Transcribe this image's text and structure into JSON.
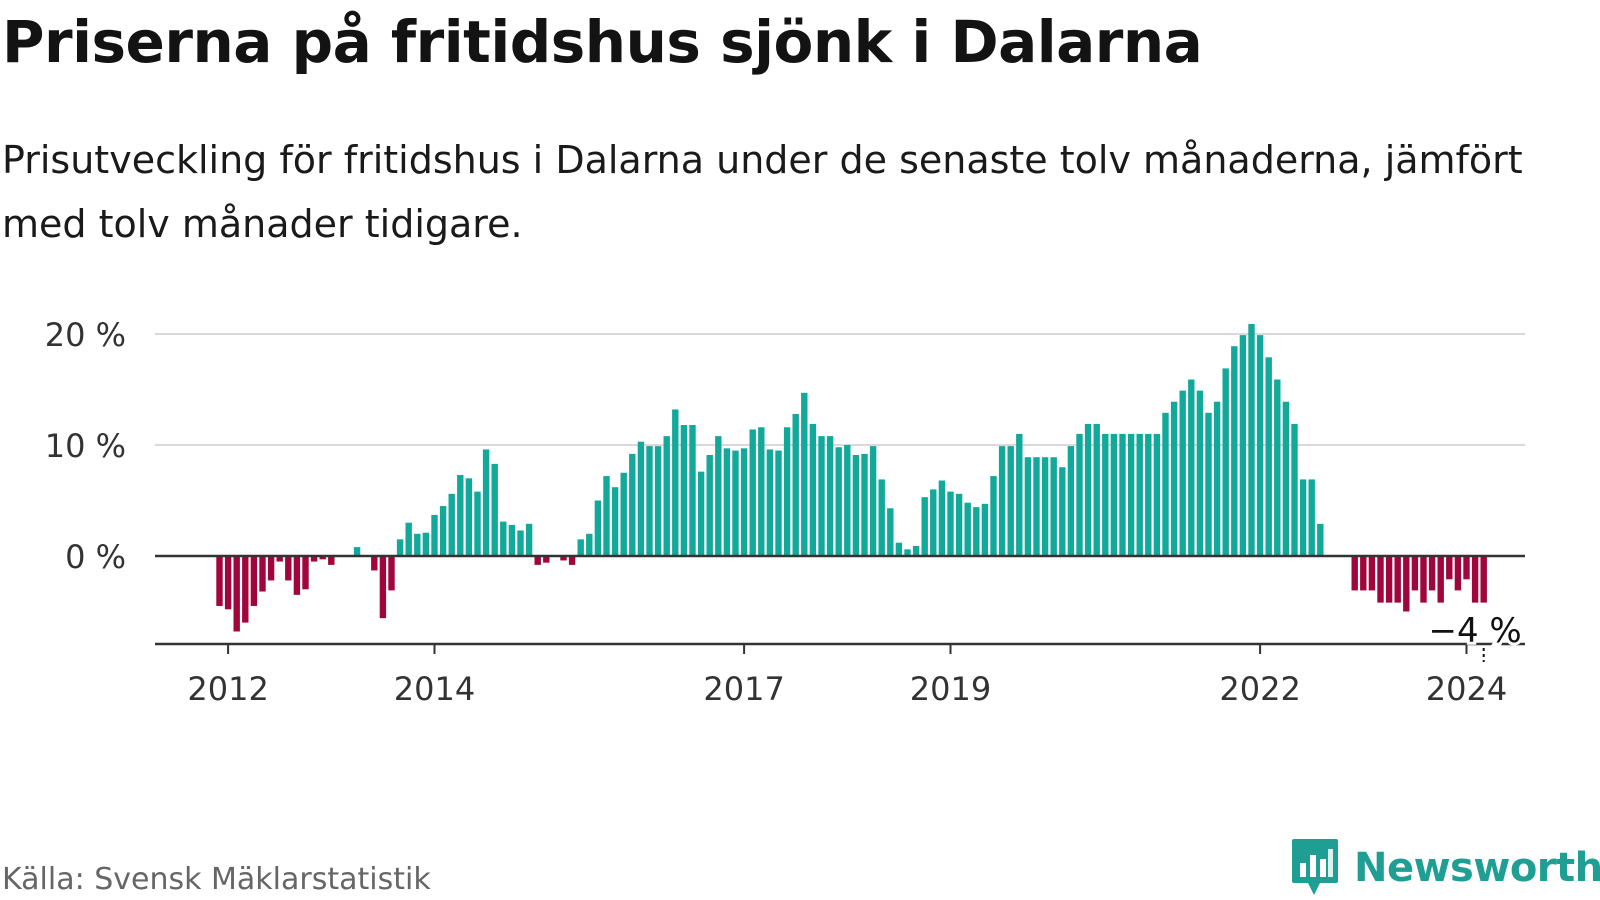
{
  "title": "Priserna på fritidshus sjönk i Dalarna",
  "subtitle": "Prisutveckling för fritidshus i Dalarna under de senaste tolv månaderna, jämfört med tolv månader tidigare.",
  "source": "Källa: Svensk Mäklarstatistik",
  "logo": {
    "text": "Newsworthy",
    "icon": "newsworthy-logo-icon"
  },
  "colors": {
    "positive": "#13a99a",
    "negative": "#a0063c",
    "grid": "#d9d9d9",
    "axis": "#333333",
    "text": "#333333",
    "logo": "#1f9e93"
  },
  "chart_data": {
    "type": "bar",
    "title": "Priserna på fritidshus sjönk i Dalarna",
    "ylabel": "",
    "xlabel": "",
    "ylim": [
      -8,
      22
    ],
    "yticks": [
      0,
      10,
      20
    ],
    "ytick_labels": [
      "0 %",
      "10 %",
      "20 %"
    ],
    "xticks": [
      {
        "year": 2012,
        "label": "2012"
      },
      {
        "year": 2014,
        "label": "2014"
      },
      {
        "year": 2017,
        "label": "2017"
      },
      {
        "year": 2019,
        "label": "2019"
      },
      {
        "year": 2022,
        "label": "2022"
      },
      {
        "year": 2024,
        "label": "2024"
      }
    ],
    "start": {
      "year": 2011,
      "month": 12
    },
    "values": [
      -4.5,
      -4.8,
      -6.8,
      -6,
      -4.5,
      -3.2,
      -2.2,
      -0.5,
      -2.2,
      -3.5,
      -3,
      -0.5,
      -0.3,
      -0.8,
      0,
      0,
      0.8,
      0,
      -1.3,
      -5.6,
      -3.1,
      1.5,
      3,
      2,
      2.1,
      3.7,
      4.5,
      5.6,
      7.3,
      7,
      5.8,
      9.6,
      8.3,
      3.1,
      2.8,
      2.3,
      2.9,
      -0.8,
      -0.6,
      0,
      -0.4,
      -0.8,
      1.5,
      2,
      5,
      7.2,
      6.2,
      7.5,
      9.2,
      10.3,
      9.9,
      9.9,
      10.8,
      13.2,
      11.8,
      11.8,
      7.6,
      9.1,
      10.8,
      9.7,
      9.5,
      9.7,
      11.4,
      11.6,
      9.6,
      9.5,
      11.6,
      12.8,
      14.7,
      11.9,
      10.8,
      10.8,
      9.8,
      10,
      9.1,
      9.2,
      9.9,
      6.9,
      4.3,
      1.2,
      0.6,
      0.9,
      5.3,
      6,
      6.8,
      5.8,
      5.6,
      4.8,
      4.4,
      4.7,
      7.2,
      9.9,
      9.9,
      11,
      8.9,
      8.9,
      8.9,
      8.9,
      8,
      9.9,
      11,
      11.9,
      11.9,
      11,
      11,
      11,
      11,
      11,
      11,
      11,
      12.9,
      13.9,
      14.9,
      15.9,
      14.9,
      12.9,
      13.9,
      16.9,
      18.9,
      19.9,
      20.9,
      19.9,
      17.9,
      15.9,
      13.9,
      11.9,
      6.9,
      6.9,
      2.9,
      0,
      0,
      0,
      -3.1,
      -3.1,
      -3.1,
      -4.2,
      -4.2,
      -4.2,
      -5,
      -3.1,
      -4.2,
      -3.1,
      -4.2,
      -2.1,
      -3.1,
      -2.1,
      -4.2,
      -4.2
    ],
    "annotation": {
      "text": "−4 %",
      "label": "latest value"
    }
  }
}
